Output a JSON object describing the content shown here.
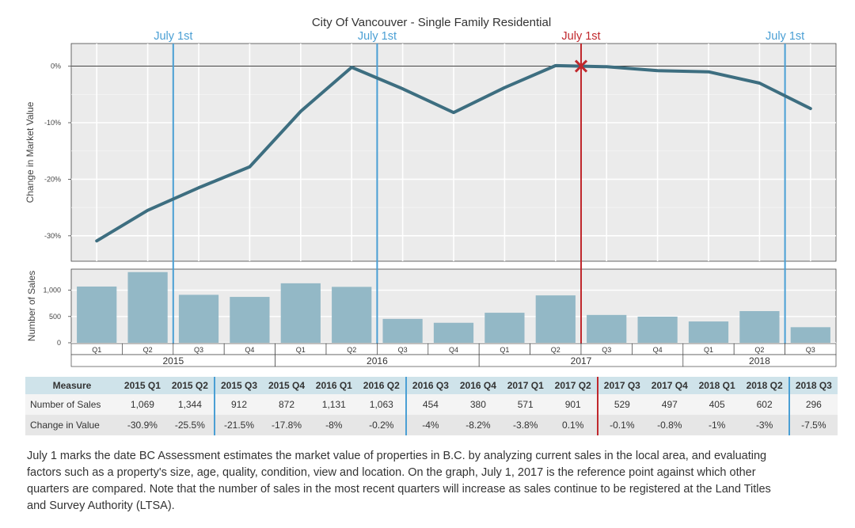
{
  "chart_data": {
    "type": "line",
    "title": "City Of Vancouver - Single Family Residential",
    "top_panel": {
      "ylabel": "Change in Market Value",
      "y_ticks": [
        "0%",
        "-10%",
        "-20%",
        "-30%"
      ],
      "ylim": [
        -34.5,
        4
      ]
    },
    "bottom_panel": {
      "type": "bar",
      "ylabel": "Number of Sales",
      "y_ticks": [
        "1,000",
        "500",
        "0"
      ],
      "ylim": [
        0,
        1400
      ]
    },
    "categories": [
      "2015 Q1",
      "2015 Q2",
      "2015 Q3",
      "2015 Q4",
      "2016 Q1",
      "2016 Q2",
      "2016 Q3",
      "2016 Q4",
      "2017 Q1",
      "2017 Q2",
      "2017 Q3",
      "2017 Q4",
      "2018 Q1",
      "2018 Q2",
      "2018 Q3"
    ],
    "quarter_labels": [
      "Q1",
      "Q2",
      "Q3",
      "Q4",
      "Q1",
      "Q2",
      "Q3",
      "Q4",
      "Q1",
      "Q2",
      "Q3",
      "Q4",
      "Q1",
      "Q2",
      "Q3"
    ],
    "years": [
      "2015",
      "2016",
      "2017",
      "2018"
    ],
    "series": [
      {
        "name": "Change in Value",
        "values": [
          -30.9,
          -25.5,
          -21.5,
          -17.8,
          -8,
          -0.2,
          -4,
          -8.2,
          -3.8,
          0.1,
          -0.1,
          -0.8,
          -1,
          -3,
          -7.5
        ]
      },
      {
        "name": "Number of Sales",
        "values": [
          1069,
          1344,
          912,
          872,
          1131,
          1063,
          454,
          380,
          571,
          901,
          529,
          497,
          405,
          602,
          296
        ]
      }
    ],
    "markers": [
      {
        "label": "July 1st",
        "position": "between 2015 Q2 and 2015 Q3",
        "color": "#4a9fd4"
      },
      {
        "label": "July 1st",
        "position": "between 2016 Q2 and 2016 Q3",
        "color": "#4a9fd4"
      },
      {
        "label": "July 1st",
        "position": "between 2017 Q2 and 2017 Q3",
        "color": "#c0282d"
      },
      {
        "label": "July 1st",
        "position": "between 2018 Q2 and 2018 Q3",
        "color": "#4a9fd4"
      }
    ],
    "colors": {
      "line": "#3d6e80",
      "bar": "#93b8c6",
      "panel_bg": "#ebebeb",
      "blue_marker": "#4a9fd4",
      "red_marker": "#c0282d"
    }
  },
  "table": {
    "headers": [
      "Measure",
      "2015 Q1",
      "2015 Q2",
      "2015 Q3",
      "2015 Q4",
      "2016 Q1",
      "2016 Q2",
      "2016 Q3",
      "2016 Q4",
      "2017 Q1",
      "2017 Q2",
      "2017 Q3",
      "2017 Q4",
      "2018 Q1",
      "2018 Q2",
      "2018 Q3"
    ],
    "rows": [
      {
        "label": "Number of Sales",
        "cells": [
          "1,069",
          "1,344",
          "912",
          "872",
          "1,131",
          "1,063",
          "454",
          "380",
          "571",
          "901",
          "529",
          "497",
          "405",
          "602",
          "296"
        ]
      },
      {
        "label": "Change in Value",
        "cells": [
          "-30.9%",
          "-25.5%",
          "-21.5%",
          "-17.8%",
          "-8%",
          "-0.2%",
          "-4%",
          "-8.2%",
          "-3.8%",
          "0.1%",
          "-0.1%",
          "-0.8%",
          "-1%",
          "-3%",
          "-7.5%"
        ]
      }
    ]
  },
  "footnote": "July 1 marks the date BC Assessment estimates the market value of properties in B.C. by analyzing current sales in the local area, and evaluating factors such as a property's size, age, quality, condition, view and location. On the graph, July 1, 2017 is the reference point against which other quarters are compared. Note that the number of sales in the most recent quarters will increase as sales continue to be registered at the Land Titles and Survey Authority (LTSA)."
}
